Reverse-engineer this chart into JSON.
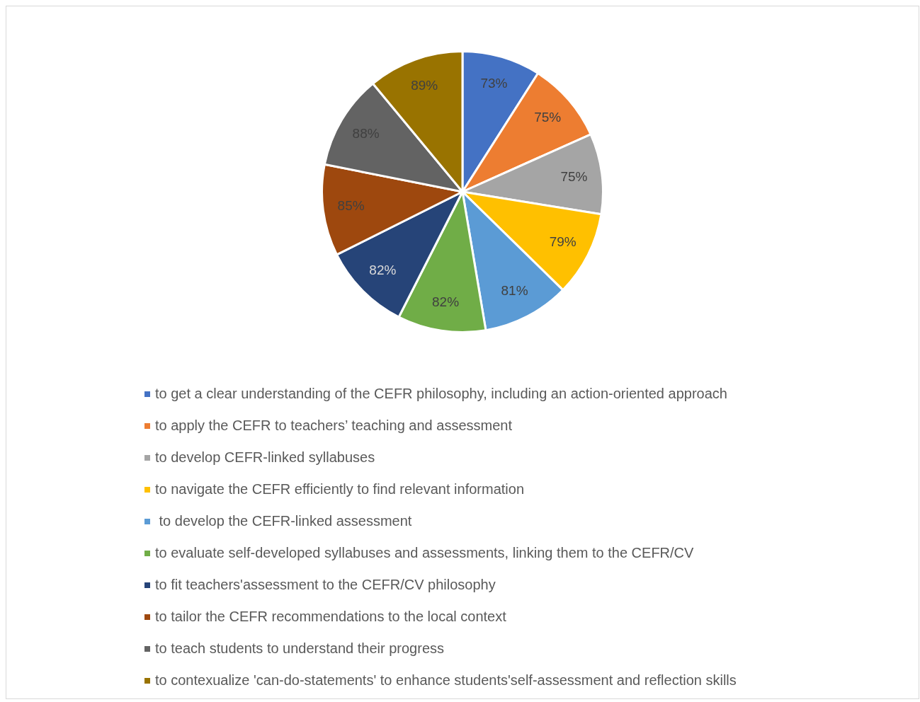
{
  "chart_data": {
    "type": "pie",
    "categories": [
      "to get a clear understanding of the CEFR philosophy, including an action-oriented approach",
      "to apply the CEFR to teachers’ teaching and assessment",
      "to develop CEFR-linked syllabuses",
      "to navigate the CEFR efficiently to find relevant information",
      " to develop the CEFR-linked assessment",
      "to evaluate self-developed syllabuses and assessments, linking them to the CEFR/CV",
      "to fit teachers'assessment to the CEFR/CV philosophy",
      "to tailor the CEFR recommendations to the local context",
      "to teach students to understand their progress",
      "to contexualize 'can-do-statements' to enhance students'self-assessment and reflection skills"
    ],
    "values": [
      73,
      75,
      75,
      79,
      81,
      82,
      82,
      85,
      88,
      89
    ],
    "value_labels": [
      "73%",
      "75%",
      "75%",
      "79%",
      "81%",
      "82%",
      "82%",
      "85%",
      "88%",
      "89%"
    ],
    "colors": [
      "#4472c4",
      "#ed7d31",
      "#a5a5a5",
      "#ffc000",
      "#5b9bd5",
      "#70ad47",
      "#264478",
      "#9e480e",
      "#636363",
      "#997300"
    ],
    "legend": "bottom"
  }
}
